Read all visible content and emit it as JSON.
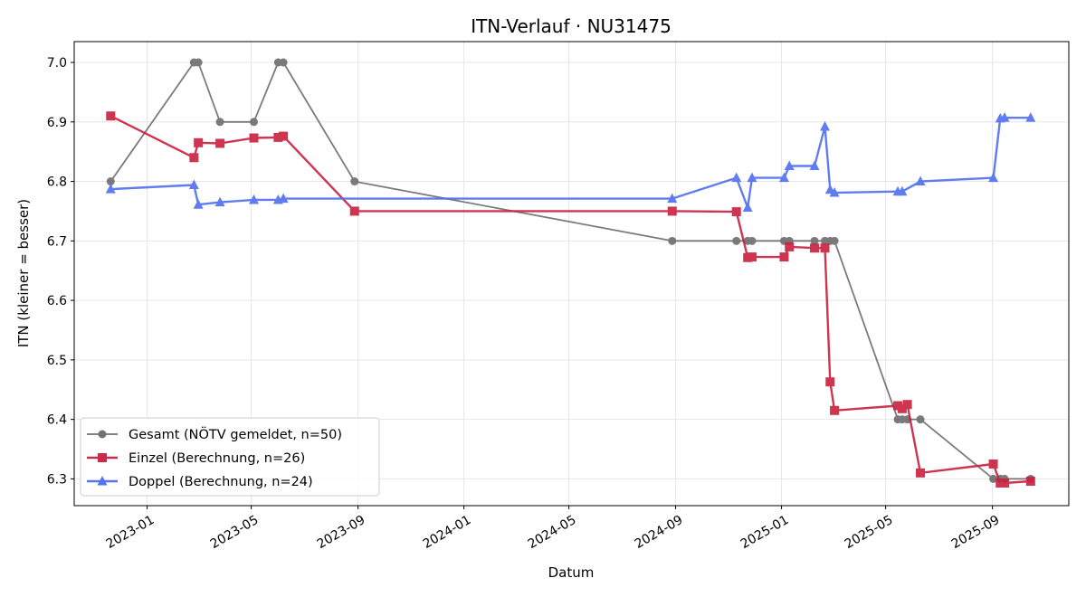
{
  "chart_data": {
    "type": "line",
    "title": "ITN-Verlauf · NU31475",
    "xlabel": "Datum",
    "ylabel": "ITN  (kleiner = besser)",
    "x_type": "date",
    "xlim": [
      "2022-10-09",
      "2025-11-28"
    ],
    "ylim": [
      6.255,
      7.035
    ],
    "x_ticks": [
      {
        "date": "2023-01-01",
        "label": "2023-01"
      },
      {
        "date": "2023-05-01",
        "label": "2023-05"
      },
      {
        "date": "2023-09-01",
        "label": "2023-09"
      },
      {
        "date": "2024-01-01",
        "label": "2024-01"
      },
      {
        "date": "2024-05-01",
        "label": "2024-05"
      },
      {
        "date": "2024-09-01",
        "label": "2024-09"
      },
      {
        "date": "2025-01-01",
        "label": "2025-01"
      },
      {
        "date": "2025-05-01",
        "label": "2025-05"
      },
      {
        "date": "2025-09-01",
        "label": "2025-09"
      }
    ],
    "y_ticks": [
      6.3,
      6.4,
      6.5,
      6.6,
      6.7,
      6.8,
      6.9,
      7.0
    ],
    "y_tick_labels": [
      "6.3",
      "6.4",
      "6.5",
      "6.6",
      "6.7",
      "6.8",
      "6.9",
      "7.0"
    ],
    "grid": true,
    "legend_position": "lower-left",
    "series": [
      {
        "name": "Gesamt (NÖTV gemeldet, n=50)",
        "color": "#444444",
        "marker": "circle",
        "points": [
          [
            "2022-11-20",
            6.8
          ],
          [
            "2023-02-24",
            7.0
          ],
          [
            "2023-03-01",
            7.0
          ],
          [
            "2023-03-26",
            6.9
          ],
          [
            "2023-05-04",
            6.9
          ],
          [
            "2023-06-01",
            7.0
          ],
          [
            "2023-06-07",
            7.0
          ],
          [
            "2023-08-28",
            6.8
          ],
          [
            "2024-08-28",
            6.7
          ],
          [
            "2024-11-10",
            6.7
          ],
          [
            "2024-11-23",
            6.7
          ],
          [
            "2024-11-28",
            6.7
          ],
          [
            "2025-01-04",
            6.7
          ],
          [
            "2025-01-10",
            6.7
          ],
          [
            "2025-02-08",
            6.7
          ],
          [
            "2025-02-20",
            6.7
          ],
          [
            "2025-02-26",
            6.7
          ],
          [
            "2025-03-03",
            6.7
          ],
          [
            "2025-05-15",
            6.4
          ],
          [
            "2025-05-20",
            6.4
          ],
          [
            "2025-05-26",
            6.4
          ],
          [
            "2025-06-10",
            6.4
          ],
          [
            "2025-09-02",
            6.3
          ],
          [
            "2025-09-10",
            6.3
          ],
          [
            "2025-09-15",
            6.3
          ],
          [
            "2025-10-15",
            6.3
          ]
        ]
      },
      {
        "name": "Einzel (Berechnung, n=26)",
        "color": "#c8203f",
        "marker": "square",
        "points": [
          [
            "2022-11-20",
            6.91
          ],
          [
            "2023-02-24",
            6.84
          ],
          [
            "2023-03-01",
            6.865
          ],
          [
            "2023-03-26",
            6.864
          ],
          [
            "2023-05-04",
            6.873
          ],
          [
            "2023-06-01",
            6.874
          ],
          [
            "2023-06-07",
            6.876
          ],
          [
            "2023-08-28",
            6.75
          ],
          [
            "2024-08-28",
            6.75
          ],
          [
            "2024-11-10",
            6.749
          ],
          [
            "2024-11-23",
            6.672
          ],
          [
            "2024-11-28",
            6.673
          ],
          [
            "2025-01-04",
            6.673
          ],
          [
            "2025-01-10",
            6.69
          ],
          [
            "2025-02-08",
            6.688
          ],
          [
            "2025-02-20",
            6.688
          ],
          [
            "2025-02-26",
            6.463
          ],
          [
            "2025-03-03",
            6.415
          ],
          [
            "2025-05-15",
            6.423
          ],
          [
            "2025-05-20",
            6.418
          ],
          [
            "2025-05-26",
            6.425
          ],
          [
            "2025-06-10",
            6.31
          ],
          [
            "2025-09-02",
            6.325
          ],
          [
            "2025-09-10",
            6.293
          ],
          [
            "2025-09-15",
            6.293
          ],
          [
            "2025-10-15",
            6.296
          ]
        ]
      },
      {
        "name": "Doppel (Berechnung, n=24)",
        "color": "#4f6ef0",
        "marker": "triangle",
        "points": [
          [
            "2022-11-20",
            6.787
          ],
          [
            "2023-02-24",
            6.794
          ],
          [
            "2023-03-01",
            6.761
          ],
          [
            "2023-03-26",
            6.765
          ],
          [
            "2023-05-04",
            6.769
          ],
          [
            "2023-06-01",
            6.769
          ],
          [
            "2023-06-07",
            6.771
          ],
          [
            "2024-08-28",
            6.771
          ],
          [
            "2024-11-10",
            6.806
          ],
          [
            "2024-11-23",
            6.756
          ],
          [
            "2024-11-28",
            6.806
          ],
          [
            "2025-01-04",
            6.806
          ],
          [
            "2025-01-10",
            6.826
          ],
          [
            "2025-02-08",
            6.826
          ],
          [
            "2025-02-20",
            6.892
          ],
          [
            "2025-02-26",
            6.786
          ],
          [
            "2025-03-03",
            6.781
          ],
          [
            "2025-05-15",
            6.783
          ],
          [
            "2025-05-20",
            6.783
          ],
          [
            "2025-06-10",
            6.8
          ],
          [
            "2025-09-02",
            6.806
          ],
          [
            "2025-09-10",
            6.906
          ],
          [
            "2025-09-15",
            6.907
          ],
          [
            "2025-10-15",
            6.907
          ]
        ]
      }
    ]
  }
}
